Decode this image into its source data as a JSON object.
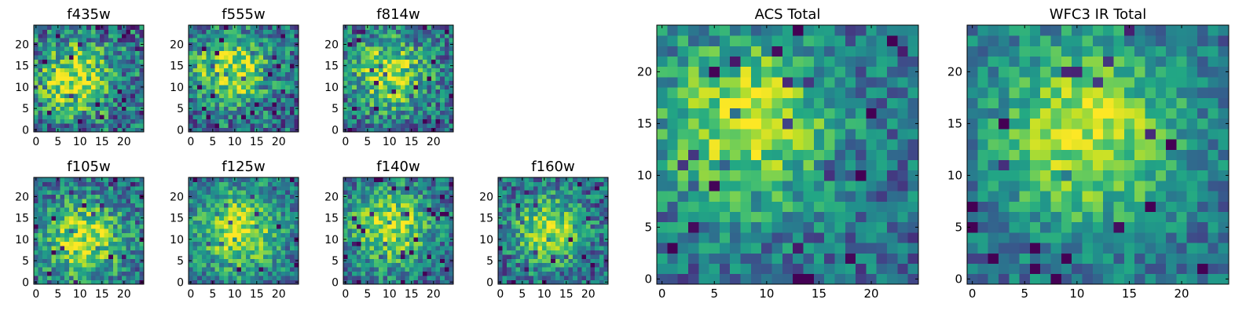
{
  "chart_data": [
    {
      "type": "heatmap",
      "title": "f435w",
      "grid": [
        25,
        25
      ],
      "ylim": [
        0,
        24
      ],
      "xticks": [
        0,
        5,
        10,
        15,
        20
      ],
      "yticks": [
        0,
        5,
        10,
        15,
        20
      ],
      "colormap": "viridis",
      "peak": [
        9,
        12
      ],
      "spread": 6,
      "noise": 0.55,
      "seed": 11
    },
    {
      "type": "heatmap",
      "title": "f555w",
      "grid": [
        25,
        25
      ],
      "ylim": [
        0,
        24
      ],
      "xticks": [
        0,
        5,
        10,
        15,
        20
      ],
      "yticks": [
        0,
        5,
        10,
        15,
        20
      ],
      "colormap": "viridis",
      "peak": [
        9,
        14
      ],
      "spread": 6,
      "noise": 0.5,
      "seed": 23
    },
    {
      "type": "heatmap",
      "title": "f814w",
      "grid": [
        25,
        25
      ],
      "ylim": [
        0,
        24
      ],
      "xticks": [
        0,
        5,
        10,
        15,
        20
      ],
      "yticks": [
        0,
        5,
        10,
        15,
        20
      ],
      "colormap": "viridis",
      "peak": [
        10,
        13
      ],
      "spread": 6,
      "noise": 0.5,
      "seed": 37
    },
    {
      "type": "heatmap",
      "title": "f105w",
      "grid": [
        25,
        25
      ],
      "ylim": [
        0,
        24
      ],
      "xticks": [
        0,
        5,
        10,
        15,
        20
      ],
      "yticks": [
        0,
        5,
        10,
        15,
        20
      ],
      "colormap": "viridis",
      "peak": [
        11,
        10
      ],
      "spread": 6.5,
      "noise": 0.45,
      "seed": 41
    },
    {
      "type": "heatmap",
      "title": "f125w",
      "grid": [
        25,
        25
      ],
      "ylim": [
        0,
        24
      ],
      "xticks": [
        0,
        5,
        10,
        15,
        20
      ],
      "yticks": [
        0,
        5,
        10,
        15,
        20
      ],
      "colormap": "viridis",
      "peak": [
        11,
        12
      ],
      "spread": 7,
      "noise": 0.4,
      "seed": 53
    },
    {
      "type": "heatmap",
      "title": "f140w",
      "grid": [
        25,
        25
      ],
      "ylim": [
        0,
        24
      ],
      "xticks": [
        0,
        5,
        10,
        15,
        20
      ],
      "yticks": [
        0,
        5,
        10,
        15,
        20
      ],
      "colormap": "viridis",
      "peak": [
        10,
        13
      ],
      "spread": 6.5,
      "noise": 0.42,
      "seed": 67
    },
    {
      "type": "heatmap",
      "title": "f160w",
      "grid": [
        25,
        25
      ],
      "ylim": [
        0,
        24
      ],
      "xticks": [
        0,
        5,
        10,
        15,
        20
      ],
      "yticks": [
        0,
        5,
        10,
        15,
        20
      ],
      "colormap": "viridis",
      "peak": [
        11,
        12
      ],
      "spread": 5.5,
      "noise": 0.45,
      "seed": 79
    },
    {
      "type": "heatmap",
      "title": "ACS Total",
      "grid": [
        25,
        25
      ],
      "ylim": [
        0,
        24
      ],
      "xticks": [
        0,
        5,
        10,
        15,
        20
      ],
      "yticks": [
        0,
        5,
        10,
        15,
        20
      ],
      "colormap": "viridis",
      "peak": [
        8,
        15
      ],
      "spread": 6,
      "noise": 0.38,
      "seed": 97
    },
    {
      "type": "heatmap",
      "title": "WFC3 IR Total",
      "grid": [
        25,
        25
      ],
      "ylim": [
        0,
        24
      ],
      "xticks": [
        0,
        5,
        10,
        15,
        20
      ],
      "yticks": [
        0,
        5,
        10,
        15,
        20
      ],
      "colormap": "viridis",
      "peak": [
        11,
        14
      ],
      "spread": 6.5,
      "noise": 0.32,
      "seed": 113
    }
  ]
}
